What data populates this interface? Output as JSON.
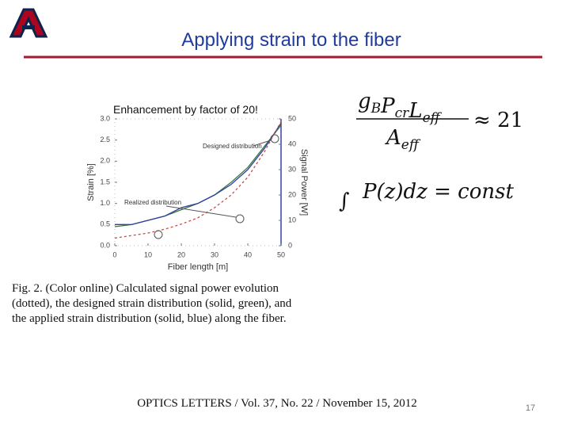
{
  "slide": {
    "title": "Applying strain to the fiber",
    "overlay_text": "Enhancement by factor of 20!",
    "equation_1": {
      "numerator": [
        {
          "t": "g",
          "sub": "B"
        },
        {
          "t": "P",
          "sub": "cr"
        },
        {
          "t": "L",
          "sub": "eff"
        }
      ],
      "denominator": [
        {
          "t": "A",
          "sub": "eff"
        }
      ],
      "rhs": "≈ 21"
    },
    "equation_2": {
      "integral": "∫",
      "body": "P(z)dz = const"
    },
    "caption": [
      "Fig. 2.   (Color online) Calculated signal power evolution",
      "(dotted), the designed strain distribution (solid, green), and",
      "the applied strain distribution (solid, blue) along the fiber."
    ],
    "citation": "OPTICS LETTERS / Vol. 37, No. 22 / November 15, 2012",
    "page_number": "17"
  },
  "chart_data": {
    "type": "line",
    "xlabel": "Fiber length [m]",
    "ylabel": "Strain [%]",
    "y2label": "Signal Power [W]",
    "annotations": [
      "Designed distribution",
      "Realized distribution"
    ],
    "x": [
      0,
      5,
      10,
      15,
      20,
      25,
      30,
      35,
      40,
      45,
      50
    ],
    "xlim": [
      0,
      50
    ],
    "xticks": [
      0,
      10,
      20,
      30,
      40,
      50
    ],
    "ylim": [
      0,
      3
    ],
    "yticks": [
      {
        "value": 0,
        "label": "0.0"
      },
      {
        "value": 0.5,
        "label": "0.5"
      },
      {
        "value": 1,
        "label": "1.0"
      },
      {
        "value": 1.5,
        "label": "1.5"
      },
      {
        "value": 2,
        "label": "2.0"
      },
      {
        "value": 2.5,
        "label": "2.5"
      },
      {
        "value": 3,
        "label": "3.0"
      }
    ],
    "y2lim": [
      0,
      50
    ],
    "y2ticks": [
      0,
      10,
      20,
      30,
      40,
      50
    ],
    "series": [
      {
        "color": "#3c7a3c",
        "values": [
          0.45,
          0.5,
          0.6,
          0.7,
          0.85,
          1.0,
          1.2,
          1.5,
          1.85,
          2.35,
          2.85
        ]
      },
      {
        "color": "#2f3fa8",
        "values": [
          0.5,
          0.5,
          0.6,
          0.7,
          0.9,
          1.0,
          1.2,
          1.45,
          1.8,
          2.3,
          2.9
        ]
      },
      {
        "color": "#c05050",
        "axis": "y2",
        "dashed": true,
        "values": [
          3,
          4,
          5,
          6.5,
          8.5,
          11,
          15,
          20,
          27,
          37,
          49
        ]
      }
    ]
  }
}
